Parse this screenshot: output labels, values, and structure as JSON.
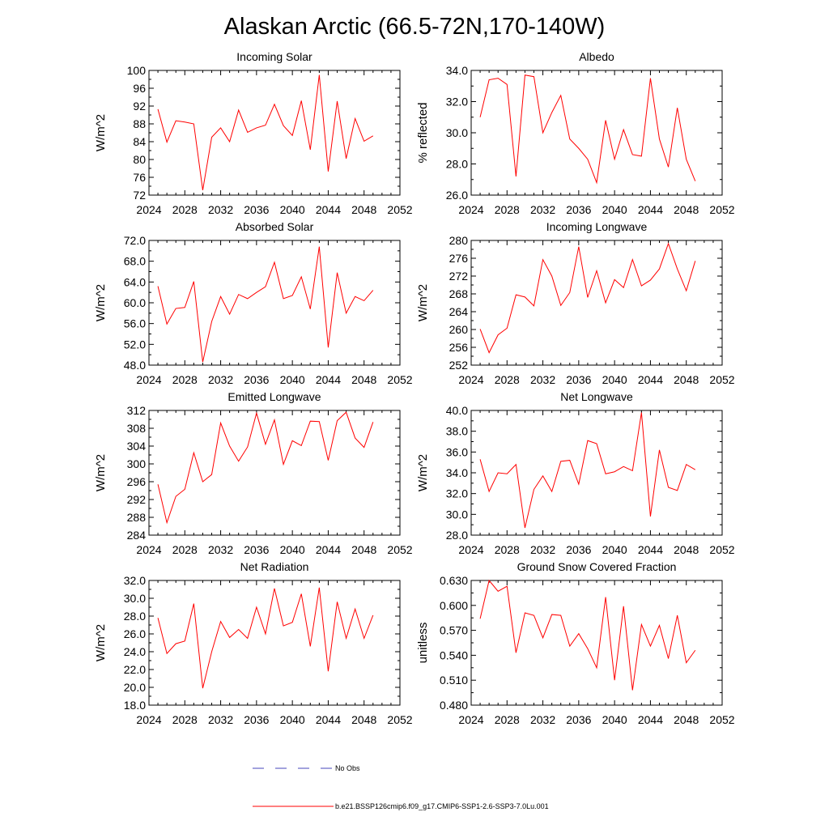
{
  "figure": {
    "title": "Alaskan Arctic (66.5-72N,170-140W)",
    "line_color": "#ff0000",
    "obs_color": "#4444bb"
  },
  "legend": {
    "entries": [
      {
        "label": "No Obs",
        "style": "dashed",
        "color": "#4444bb"
      },
      {
        "label": "b.e21.BSSP126cmip6.f09_g17.CMIP6-SSP1-2.6-SSP3-7.0Lu.001",
        "style": "solid",
        "color": "#ff0000"
      }
    ]
  },
  "chart_data": [
    {
      "type": "line",
      "title": "Incoming Solar",
      "ylabel": "W/m^2",
      "xlim": [
        2024,
        2052
      ],
      "xticks": [
        "2024",
        "2028",
        "2032",
        "2036",
        "2040",
        "2044",
        "2048",
        "2052"
      ],
      "ylim": [
        72,
        100
      ],
      "yticks": [
        "72",
        "76",
        "80",
        "84",
        "88",
        "92",
        "96",
        "100"
      ],
      "x": [
        2025,
        2026,
        2027,
        2028,
        2029,
        2030,
        2031,
        2032,
        2033,
        2034,
        2035,
        2036,
        2037,
        2038,
        2039,
        2040,
        2041,
        2042,
        2043,
        2044,
        2045,
        2046,
        2047,
        2048,
        2049
      ],
      "series": [
        {
          "values": [
            91.3,
            83.9,
            88.7,
            88.4,
            88.0,
            73.1,
            85.0,
            87.1,
            84.0,
            91.1,
            86.1,
            87.1,
            87.7,
            92.4,
            87.6,
            85.4,
            93.2,
            82.2,
            99.0,
            77.3,
            93.1,
            80.2,
            89.2,
            84.1,
            85.3
          ]
        }
      ]
    },
    {
      "type": "line",
      "title": "Albedo",
      "ylabel": "% reflected",
      "xlim": [
        2024,
        2052
      ],
      "xticks": [
        "2024",
        "2028",
        "2032",
        "2036",
        "2040",
        "2044",
        "2048",
        "2052"
      ],
      "ylim": [
        26,
        34
      ],
      "yticks": [
        "26.0",
        "28.0",
        "30.0",
        "32.0",
        "34.0"
      ],
      "x": [
        2025,
        2026,
        2027,
        2028,
        2029,
        2030,
        2031,
        2032,
        2033,
        2034,
        2035,
        2036,
        2037,
        2038,
        2039,
        2040,
        2041,
        2042,
        2043,
        2044,
        2045,
        2046,
        2047,
        2048,
        2049
      ],
      "series": [
        {
          "values": [
            31.0,
            33.4,
            33.5,
            33.1,
            27.2,
            33.7,
            33.6,
            30.0,
            31.3,
            32.4,
            29.6,
            29.0,
            28.3,
            26.8,
            30.8,
            28.3,
            30.2,
            28.6,
            28.5,
            33.5,
            29.6,
            27.8,
            31.6,
            28.3,
            26.9
          ]
        }
      ]
    },
    {
      "type": "line",
      "title": "Absorbed Solar",
      "ylabel": "W/m^2",
      "xlim": [
        2024,
        2052
      ],
      "xticks": [
        "2024",
        "2028",
        "2032",
        "2036",
        "2040",
        "2044",
        "2048",
        "2052"
      ],
      "ylim": [
        48,
        72
      ],
      "yticks": [
        "48.0",
        "52.0",
        "56.0",
        "60.0",
        "64.0",
        "68.0",
        "72.0"
      ],
      "x": [
        2025,
        2026,
        2027,
        2028,
        2029,
        2030,
        2031,
        2032,
        2033,
        2034,
        2035,
        2036,
        2037,
        2038,
        2039,
        2040,
        2041,
        2042,
        2043,
        2044,
        2045,
        2046,
        2047,
        2048,
        2049
      ],
      "series": [
        {
          "values": [
            63.2,
            55.9,
            58.9,
            59.1,
            64.1,
            48.6,
            56.4,
            61.2,
            57.8,
            61.6,
            60.8,
            62.0,
            63.1,
            67.8,
            60.8,
            61.4,
            65.0,
            58.8,
            70.8,
            51.4,
            65.8,
            58.0,
            61.2,
            60.4,
            62.4
          ]
        }
      ]
    },
    {
      "type": "line",
      "title": "Incoming Longwave",
      "ylabel": "W/m^2",
      "xlim": [
        2024,
        2052
      ],
      "xticks": [
        "2024",
        "2028",
        "2032",
        "2036",
        "2040",
        "2044",
        "2048",
        "2052"
      ],
      "ylim": [
        252,
        280
      ],
      "yticks": [
        "252",
        "256",
        "260",
        "264",
        "268",
        "272",
        "276",
        "280"
      ],
      "x": [
        2025,
        2026,
        2027,
        2028,
        2029,
        2030,
        2031,
        2032,
        2033,
        2034,
        2035,
        2036,
        2037,
        2038,
        2039,
        2040,
        2041,
        2042,
        2043,
        2044,
        2045,
        2046,
        2047,
        2048,
        2049
      ],
      "series": [
        {
          "values": [
            260.1,
            254.8,
            258.8,
            260.3,
            267.8,
            267.3,
            265.3,
            275.7,
            272.0,
            265.4,
            268.3,
            278.6,
            267.2,
            273.2,
            266.0,
            271.2,
            269.4,
            275.7,
            269.8,
            271.1,
            273.6,
            279.3,
            273.6,
            268.7,
            275.4
          ]
        }
      ]
    },
    {
      "type": "line",
      "title": "Emitted Longwave",
      "ylabel": "W/m^2",
      "xlim": [
        2024,
        2052
      ],
      "xticks": [
        "2024",
        "2028",
        "2032",
        "2036",
        "2040",
        "2044",
        "2048",
        "2052"
      ],
      "ylim": [
        284,
        312
      ],
      "yticks": [
        "284",
        "288",
        "292",
        "296",
        "300",
        "304",
        "308",
        "312"
      ],
      "x": [
        2025,
        2026,
        2027,
        2028,
        2029,
        2030,
        2031,
        2032,
        2033,
        2034,
        2035,
        2036,
        2037,
        2038,
        2039,
        2040,
        2041,
        2042,
        2043,
        2044,
        2045,
        2046,
        2047,
        2048,
        2049
      ],
      "series": [
        {
          "values": [
            295.4,
            286.8,
            292.7,
            294.3,
            302.5,
            296.0,
            297.6,
            309.2,
            304.0,
            300.6,
            303.8,
            311.4,
            304.4,
            309.9,
            299.9,
            305.2,
            304.1,
            309.6,
            309.5,
            300.8,
            309.7,
            311.6,
            305.8,
            303.7,
            309.4
          ]
        }
      ]
    },
    {
      "type": "line",
      "title": "Net Longwave",
      "ylabel": "W/m^2",
      "xlim": [
        2024,
        2052
      ],
      "xticks": [
        "2024",
        "2028",
        "2032",
        "2036",
        "2040",
        "2044",
        "2048",
        "2052"
      ],
      "ylim": [
        28,
        40
      ],
      "yticks": [
        "28.0",
        "30.0",
        "32.0",
        "34.0",
        "36.0",
        "38.0",
        "40.0"
      ],
      "x": [
        2025,
        2026,
        2027,
        2028,
        2029,
        2030,
        2031,
        2032,
        2033,
        2034,
        2035,
        2036,
        2037,
        2038,
        2039,
        2040,
        2041,
        2042,
        2043,
        2044,
        2045,
        2046,
        2047,
        2048,
        2049
      ],
      "series": [
        {
          "values": [
            35.3,
            32.2,
            34.0,
            33.9,
            34.8,
            28.7,
            32.4,
            33.7,
            32.2,
            35.1,
            35.2,
            32.9,
            37.1,
            36.8,
            33.9,
            34.1,
            34.6,
            34.2,
            39.8,
            29.8,
            36.2,
            32.6,
            32.3,
            34.8,
            34.3
          ]
        }
      ]
    },
    {
      "type": "line",
      "title": "Net Radiation",
      "ylabel": "W/m^2",
      "xlim": [
        2024,
        2052
      ],
      "xticks": [
        "2024",
        "2028",
        "2032",
        "2036",
        "2040",
        "2044",
        "2048",
        "2052"
      ],
      "ylim": [
        18,
        32
      ],
      "yticks": [
        "18.0",
        "20.0",
        "22.0",
        "24.0",
        "26.0",
        "28.0",
        "30.0",
        "32.0"
      ],
      "x": [
        2025,
        2026,
        2027,
        2028,
        2029,
        2030,
        2031,
        2032,
        2033,
        2034,
        2035,
        2036,
        2037,
        2038,
        2039,
        2040,
        2041,
        2042,
        2043,
        2044,
        2045,
        2046,
        2047,
        2048,
        2049
      ],
      "series": [
        {
          "values": [
            27.8,
            23.8,
            24.9,
            25.2,
            29.4,
            19.9,
            24.0,
            27.4,
            25.6,
            26.5,
            25.5,
            29.0,
            26.0,
            31.1,
            26.9,
            27.3,
            30.5,
            24.6,
            31.2,
            21.8,
            29.6,
            25.5,
            28.8,
            25.5,
            28.1
          ]
        }
      ]
    },
    {
      "type": "line",
      "title": "Ground Snow Covered Fraction",
      "ylabel": "unitless",
      "xlim": [
        2024,
        2052
      ],
      "xticks": [
        "2024",
        "2028",
        "2032",
        "2036",
        "2040",
        "2044",
        "2048",
        "2052"
      ],
      "ylim": [
        0.48,
        0.63
      ],
      "yticks": [
        "0.480",
        "0.510",
        "0.540",
        "0.570",
        "0.600",
        "0.630"
      ],
      "x": [
        2025,
        2026,
        2027,
        2028,
        2029,
        2030,
        2031,
        2032,
        2033,
        2034,
        2035,
        2036,
        2037,
        2038,
        2039,
        2040,
        2041,
        2042,
        2043,
        2044,
        2045,
        2046,
        2047,
        2048,
        2049
      ],
      "series": [
        {
          "values": [
            0.584,
            0.63,
            0.617,
            0.623,
            0.543,
            0.591,
            0.588,
            0.561,
            0.589,
            0.588,
            0.551,
            0.566,
            0.548,
            0.525,
            0.61,
            0.51,
            0.599,
            0.498,
            0.577,
            0.551,
            0.576,
            0.536,
            0.588,
            0.531,
            0.546
          ]
        }
      ]
    }
  ]
}
